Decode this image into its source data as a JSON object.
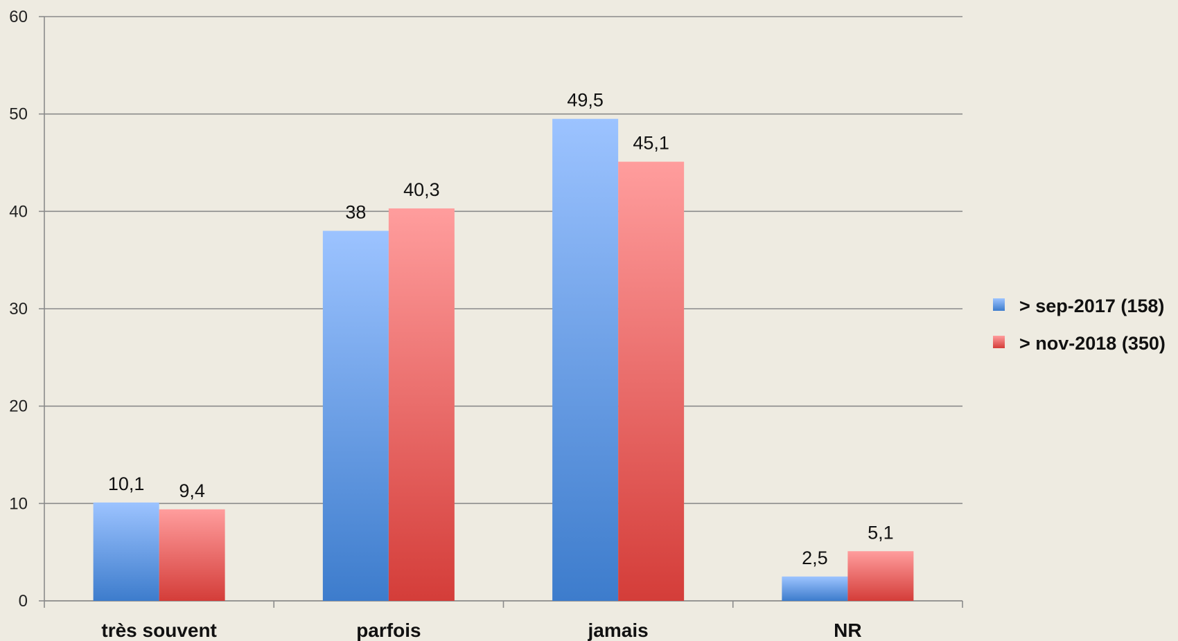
{
  "chart_data": {
    "type": "bar",
    "title": "",
    "xlabel": "",
    "ylabel": "",
    "categories": [
      "très souvent",
      "parfois",
      "jamais",
      "NR"
    ],
    "series": [
      {
        "name": "> sep-2017 (158)",
        "values": [
          10.1,
          38,
          49.5,
          2.5
        ],
        "labels": [
          "10,1",
          "38",
          "49,5",
          "2,5"
        ],
        "color": "#4a86d0"
      },
      {
        "name": "> nov-2018 (350)",
        "values": [
          9.4,
          40.3,
          45.1,
          5.1
        ],
        "labels": [
          "9,4",
          "40,3",
          "45,1",
          "5,1"
        ],
        "color": "#d9423e"
      }
    ],
    "ylim": [
      0,
      60
    ],
    "yticks": [
      "0",
      "10",
      "20",
      "30",
      "40",
      "50",
      "60"
    ],
    "grid": true,
    "legend_position": "right"
  },
  "colors": {
    "background": "#eeebe1",
    "gridline": "#8a8a8a",
    "series1_light": "#9cc3ff",
    "series1_dark": "#3d7ccc",
    "series2_light": "#ff9d9d",
    "series2_dark": "#d43d39"
  }
}
